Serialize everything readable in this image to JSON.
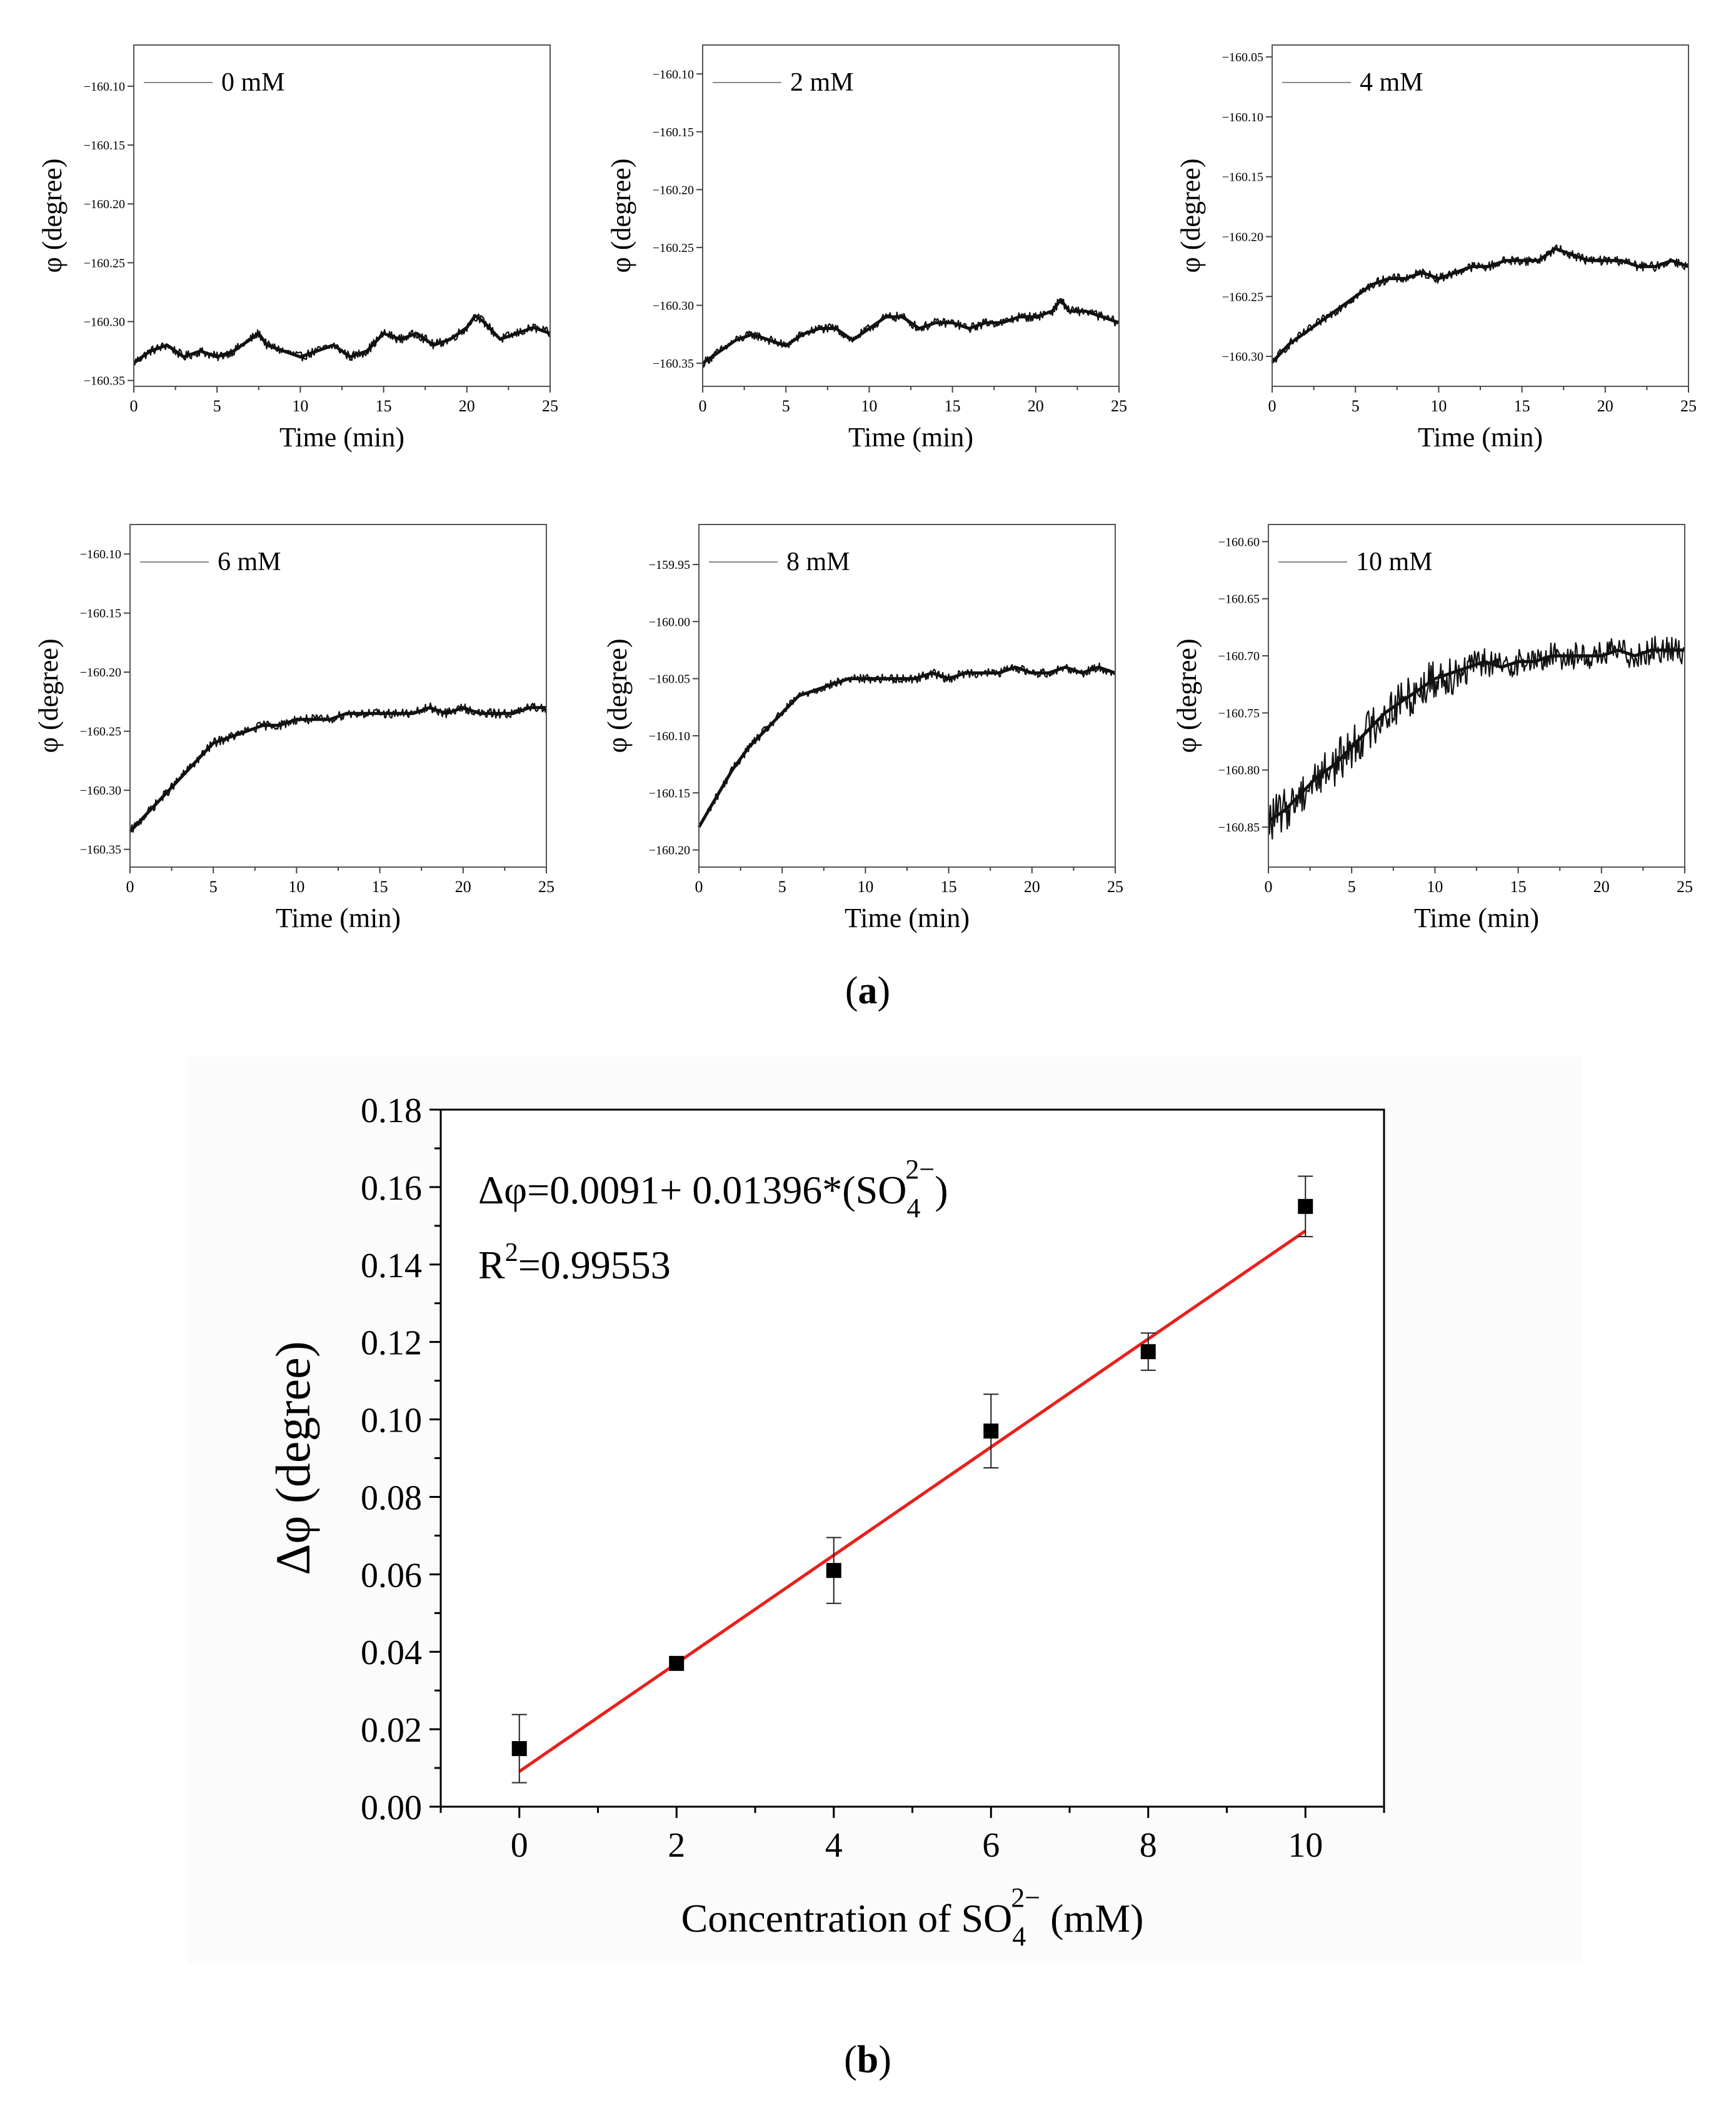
{
  "panel_a_label": "a",
  "panel_b_label": "b",
  "colors": {
    "axis": "#000000",
    "trace": "#111111",
    "fit": "#e8201d",
    "marker": "#000000"
  },
  "chart_data": [
    {
      "type": "line",
      "id": "a0",
      "legend": "0 mM",
      "xlabel": "Time (min)",
      "ylabel": "φ (degree)",
      "xlim": [
        0,
        25
      ],
      "ylim": [
        -160.355,
        -160.065
      ],
      "xticks": [
        0,
        5,
        10,
        15,
        20,
        25
      ],
      "yticks": [
        -160.1,
        -160.15,
        -160.2,
        -160.25,
        -160.3,
        -160.35
      ],
      "ytick_labels": [
        "−160.10",
        "−160.15",
        "−160.20",
        "−160.25",
        "−160.30",
        "−160.35"
      ],
      "x": [
        0,
        1,
        2,
        3,
        4,
        5,
        6,
        7,
        7.5,
        8,
        9,
        10,
        11,
        12,
        13,
        14,
        15,
        16,
        17,
        18,
        19,
        20,
        20.5,
        21,
        22,
        23,
        24,
        25
      ],
      "y": [
        -160.335,
        -160.325,
        -160.32,
        -160.33,
        -160.325,
        -160.33,
        -160.325,
        -160.315,
        -160.31,
        -160.32,
        -160.325,
        -160.33,
        -160.325,
        -160.32,
        -160.33,
        -160.325,
        -160.31,
        -160.315,
        -160.31,
        -160.32,
        -160.315,
        -160.305,
        -160.295,
        -160.3,
        -160.315,
        -160.31,
        -160.305,
        -160.31
      ]
    },
    {
      "type": "line",
      "id": "a2",
      "legend": "2 mM",
      "xlabel": "Time (min)",
      "ylabel": "φ (degree)",
      "xlim": [
        0,
        25
      ],
      "ylim": [
        -160.37,
        -160.075
      ],
      "xticks": [
        0,
        5,
        10,
        15,
        20,
        25
      ],
      "yticks": [
        -160.1,
        -160.15,
        -160.2,
        -160.25,
        -160.3,
        -160.35
      ],
      "ytick_labels": [
        "−160.10",
        "−160.15",
        "−160.20",
        "−160.25",
        "−160.30",
        "−160.35"
      ],
      "x": [
        0,
        1,
        2,
        3,
        4,
        5,
        6,
        7,
        8,
        9,
        10,
        11,
        12,
        13,
        14,
        15,
        16,
        17,
        18,
        19,
        20,
        21,
        21.5,
        22,
        23,
        24,
        25
      ],
      "y": [
        -160.35,
        -160.34,
        -160.33,
        -160.325,
        -160.33,
        -160.335,
        -160.325,
        -160.32,
        -160.32,
        -160.33,
        -160.32,
        -160.31,
        -160.31,
        -160.32,
        -160.315,
        -160.315,
        -160.32,
        -160.315,
        -160.315,
        -160.31,
        -160.31,
        -160.305,
        -160.295,
        -160.305,
        -160.305,
        -160.31,
        -160.315
      ]
    },
    {
      "type": "line",
      "id": "a4",
      "legend": "4 mM",
      "xlabel": "Time (min)",
      "ylabel": "φ (degree)",
      "xlim": [
        0,
        25
      ],
      "ylim": [
        -160.325,
        -160.04
      ],
      "xticks": [
        0,
        5,
        10,
        15,
        20,
        25
      ],
      "yticks": [
        -160.05,
        -160.1,
        -160.15,
        -160.2,
        -160.25,
        -160.3
      ],
      "ytick_labels": [
        "−160.05",
        "−160.10",
        "−160.15",
        "−160.20",
        "−160.25",
        "−160.30"
      ],
      "x": [
        0,
        1,
        2,
        3,
        4,
        5,
        6,
        7,
        8,
        9,
        10,
        11,
        12,
        13,
        14,
        15,
        16,
        17,
        18,
        19,
        20,
        21,
        22,
        23,
        24,
        25
      ],
      "y": [
        -160.305,
        -160.29,
        -160.28,
        -160.27,
        -160.26,
        -160.25,
        -160.24,
        -160.235,
        -160.235,
        -160.23,
        -160.235,
        -160.23,
        -160.225,
        -160.225,
        -160.22,
        -160.22,
        -160.22,
        -160.21,
        -160.215,
        -160.22,
        -160.22,
        -160.22,
        -160.225,
        -160.225,
        -160.22,
        -160.225
      ]
    },
    {
      "type": "line",
      "id": "a6",
      "legend": "6 mM",
      "xlabel": "Time (min)",
      "ylabel": "φ (degree)",
      "xlim": [
        0,
        25
      ],
      "ylim": [
        -160.365,
        -160.075
      ],
      "xticks": [
        0,
        5,
        10,
        15,
        20,
        25
      ],
      "yticks": [
        -160.1,
        -160.15,
        -160.2,
        -160.25,
        -160.3,
        -160.35
      ],
      "ytick_labels": [
        "−160.10",
        "−160.15",
        "−160.20",
        "−160.25",
        "−160.30",
        "−160.35"
      ],
      "x": [
        0,
        1,
        2,
        3,
        4,
        5,
        6,
        7,
        8,
        9,
        10,
        11,
        12,
        13,
        14,
        15,
        16,
        17,
        18,
        19,
        20,
        21,
        22,
        23,
        24,
        25
      ],
      "y": [
        -160.335,
        -160.32,
        -160.305,
        -160.29,
        -160.275,
        -160.26,
        -160.255,
        -160.25,
        -160.245,
        -160.245,
        -160.24,
        -160.24,
        -160.24,
        -160.235,
        -160.235,
        -160.235,
        -160.235,
        -160.235,
        -160.23,
        -160.235,
        -160.23,
        -160.235,
        -160.235,
        -160.235,
        -160.23,
        -160.23
      ]
    },
    {
      "type": "line",
      "id": "a8",
      "legend": "8 mM",
      "xlabel": "Time (min)",
      "ylabel": "φ (degree)",
      "xlim": [
        0,
        25
      ],
      "ylim": [
        -160.215,
        -159.915
      ],
      "xticks": [
        0,
        5,
        10,
        15,
        20,
        25
      ],
      "yticks": [
        -159.95,
        -160.0,
        -160.05,
        -160.1,
        -160.15,
        -160.2
      ],
      "ytick_labels": [
        "−159.95",
        "−160.00",
        "−160.05",
        "−160.10",
        "−160.15",
        "−160.20"
      ],
      "x": [
        0,
        1,
        2,
        3,
        4,
        5,
        6,
        7,
        8,
        9,
        10,
        11,
        12,
        13,
        14,
        15,
        16,
        17,
        18,
        19,
        20,
        21,
        22,
        23,
        24,
        25
      ],
      "y": [
        -160.18,
        -160.155,
        -160.13,
        -160.11,
        -160.095,
        -160.08,
        -160.065,
        -160.06,
        -160.055,
        -160.05,
        -160.05,
        -160.05,
        -160.05,
        -160.05,
        -160.045,
        -160.05,
        -160.045,
        -160.045,
        -160.045,
        -160.04,
        -160.045,
        -160.045,
        -160.04,
        -160.045,
        -160.04,
        -160.045
      ]
    },
    {
      "type": "line",
      "id": "a10",
      "legend": "10 mM",
      "xlabel": "Time (min)",
      "ylabel": "φ (degree)",
      "xlim": [
        0,
        25
      ],
      "ylim": [
        -160.885,
        -160.585
      ],
      "xticks": [
        0,
        5,
        10,
        15,
        20,
        25
      ],
      "yticks": [
        -160.6,
        -160.65,
        -160.7,
        -160.75,
        -160.8,
        -160.85
      ],
      "ytick_labels": [
        "−160.60",
        "−160.65",
        "−160.70",
        "−160.75",
        "−160.80",
        "−160.85"
      ],
      "x": [
        0,
        1,
        2,
        3,
        4,
        5,
        6,
        7,
        8,
        9,
        10,
        11,
        12,
        13,
        14,
        15,
        16,
        17,
        18,
        19,
        20,
        21,
        22,
        23,
        24,
        25
      ],
      "y": [
        -160.845,
        -160.835,
        -160.82,
        -160.805,
        -160.795,
        -160.78,
        -160.765,
        -160.75,
        -160.74,
        -160.73,
        -160.72,
        -160.715,
        -160.71,
        -160.705,
        -160.71,
        -160.705,
        -160.705,
        -160.7,
        -160.7,
        -160.7,
        -160.7,
        -160.695,
        -160.7,
        -160.695,
        -160.695,
        -160.695
      ]
    },
    {
      "type": "scatter",
      "id": "b",
      "xlabel_prefix": "Concentration of SO",
      "xlabel_sub": "4",
      "xlabel_sup": "2−",
      "xlabel_suffix": " (mM)",
      "ylabel": "Δφ (degree)",
      "xlim": [
        -1,
        11.0
      ],
      "ylim": [
        0,
        0.18
      ],
      "xticks": [
        0,
        2,
        4,
        6,
        8,
        10
      ],
      "yticks": [
        0.0,
        0.02,
        0.04,
        0.06,
        0.08,
        0.1,
        0.12,
        0.14,
        0.16,
        0.18
      ],
      "ytick_labels": [
        "0.00",
        "0.02",
        "0.04",
        "0.06",
        "0.08",
        "0.10",
        "0.12",
        "0.14",
        "0.16",
        "0.18"
      ],
      "x": [
        0,
        2,
        4,
        6,
        8,
        10
      ],
      "y": [
        0.015,
        0.037,
        0.061,
        0.097,
        0.1175,
        0.155
      ],
      "yerr": [
        0.0088,
        0.0,
        0.0085,
        0.0095,
        0.0048,
        0.0078
      ],
      "fit": {
        "intercept": 0.0091,
        "slope": 0.01396,
        "x_range": [
          0,
          10
        ]
      },
      "equation_prefix": "Δφ=0.0091+ 0.01396*(SO",
      "equation_sub": "4",
      "equation_sup": "2−",
      "equation_suffix": ")",
      "r2_prefix": "R",
      "r2_sup": "2",
      "r2_suffix": "=0.99553"
    }
  ]
}
